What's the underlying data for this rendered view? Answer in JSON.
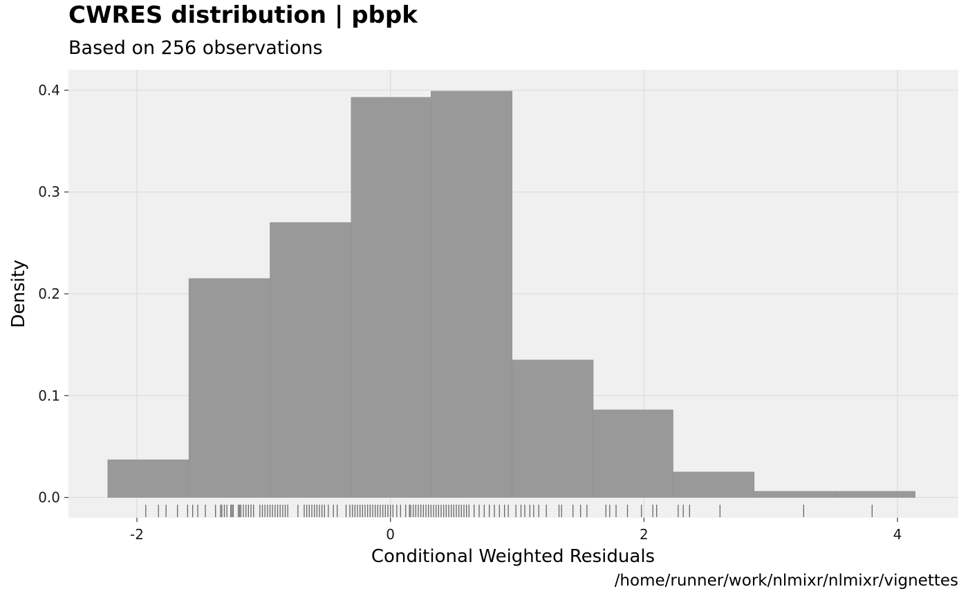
{
  "chart_data": {
    "type": "bar",
    "title": "CWRES distribution | pbpk",
    "subtitle": "Based on 256 observations",
    "caption": "/home/runner/work/nlmixr/nlmixr/vignettes",
    "xlabel": "Conditional Weighted Residuals",
    "ylabel": "Density",
    "xlim": [
      -2.54,
      4.48
    ],
    "ylim": [
      -0.02,
      0.42
    ],
    "x_ticks": [
      -2,
      0,
      2,
      4
    ],
    "x_tick_labels": [
      "-2",
      "0",
      "2",
      "4"
    ],
    "y_ticks": [
      0.0,
      0.1,
      0.2,
      0.3,
      0.4
    ],
    "y_tick_labels": [
      "0.0",
      "0.1",
      "0.2",
      "0.3",
      "0.4"
    ],
    "grid": true,
    "background": "#f0f0f0",
    "bar_color": "#999999",
    "rug_color": "#666666",
    "bins": [
      {
        "x0": -2.23,
        "x1": -1.59,
        "density": 0.037
      },
      {
        "x0": -1.59,
        "x1": -0.95,
        "density": 0.215
      },
      {
        "x0": -0.95,
        "x1": -0.31,
        "density": 0.27
      },
      {
        "x0": -0.31,
        "x1": 0.32,
        "density": 0.393
      },
      {
        "x0": 0.32,
        "x1": 0.96,
        "density": 0.399
      },
      {
        "x0": 0.96,
        "x1": 1.6,
        "density": 0.135
      },
      {
        "x0": 1.6,
        "x1": 2.23,
        "density": 0.086
      },
      {
        "x0": 2.23,
        "x1": 2.87,
        "density": 0.025
      },
      {
        "x0": 2.87,
        "x1": 3.51,
        "density": 0.006
      },
      {
        "x0": 3.51,
        "x1": 4.14,
        "density": 0.006
      }
    ],
    "rug": [
      -1.93,
      -1.83,
      -1.77,
      -1.68,
      -1.6,
      -1.56,
      -1.52,
      -1.46,
      -1.38,
      -1.34,
      -1.33,
      -1.31,
      -1.29,
      -1.26,
      -1.25,
      -1.24,
      -1.2,
      -1.19,
      -1.18,
      -1.16,
      -1.14,
      -1.12,
      -1.1,
      -1.08,
      -1.03,
      -1.01,
      -0.99,
      -0.97,
      -0.95,
      -0.93,
      -0.91,
      -0.89,
      -0.87,
      -0.85,
      -0.83,
      -0.81,
      -0.73,
      -0.68,
      -0.66,
      -0.64,
      -0.62,
      -0.6,
      -0.58,
      -0.56,
      -0.54,
      -0.52,
      -0.49,
      -0.45,
      -0.42,
      -0.35,
      -0.32,
      -0.3,
      -0.28,
      -0.26,
      -0.24,
      -0.22,
      -0.2,
      -0.18,
      -0.16,
      -0.14,
      -0.12,
      -0.1,
      -0.08,
      -0.06,
      -0.04,
      -0.02,
      0.0,
      0.02,
      0.05,
      0.08,
      0.12,
      0.15,
      0.16,
      0.18,
      0.2,
      0.22,
      0.24,
      0.26,
      0.28,
      0.3,
      0.32,
      0.34,
      0.36,
      0.38,
      0.4,
      0.42,
      0.44,
      0.46,
      0.48,
      0.5,
      0.52,
      0.54,
      0.56,
      0.58,
      0.6,
      0.62,
      0.66,
      0.7,
      0.74,
      0.78,
      0.82,
      0.86,
      0.9,
      0.93,
      0.99,
      1.03,
      1.06,
      1.1,
      1.13,
      1.17,
      1.23,
      1.33,
      1.35,
      1.44,
      1.5,
      1.55,
      1.7,
      1.73,
      1.78,
      1.87,
      1.98,
      2.07,
      2.1,
      2.27,
      2.31,
      2.36,
      2.6,
      3.26,
      3.8
    ]
  }
}
